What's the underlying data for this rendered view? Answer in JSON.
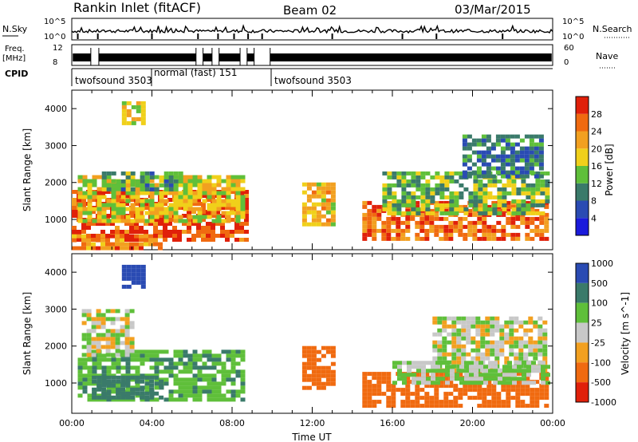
{
  "header": {
    "title": "Rankin Inlet (fitACF)",
    "beam": "Beam 02",
    "date": "03/Mar/2015"
  },
  "colors": {
    "axis": "#000000",
    "power_scale": [
      "#1a1adb",
      "#2a4bb3",
      "#3a7a6a",
      "#5fbf3a",
      "#f0d01a",
      "#f2a020",
      "#f06a10",
      "#e0200a"
    ],
    "velocity_scale": [
      "#2a4bb3",
      "#3a7a6a",
      "#5fbf3a",
      "#c8c8c8",
      "#f2a020",
      "#f06a10",
      "#e0200a"
    ]
  },
  "strip_panels": {
    "nsky": {
      "left_label": "N.Sky",
      "left_ticks": [
        "10^5",
        "10^0"
      ],
      "right_ticks": [
        "10^5",
        "10^0"
      ],
      "right_label": "N.Search"
    },
    "freq": {
      "left_label_line1": "Freq.",
      "left_label_line2": "[MHz]",
      "left_ticks": [
        "12",
        "8"
      ],
      "right_ticks": [
        "60",
        "0"
      ],
      "right_label": "Nave"
    },
    "cpid": {
      "label": "CPID",
      "segments": [
        {
          "label": "twofsound 3503",
          "start_h": 0.0,
          "end_h": 4.0
        },
        {
          "label": "normal (fast) 151",
          "start_h": 4.0,
          "end_h": 10.0
        },
        {
          "label": "twofsound 3503",
          "start_h": 10.0,
          "end_h": 24.0
        }
      ]
    }
  },
  "chart_data": [
    {
      "type": "heatmap",
      "title": "",
      "xlabel": "",
      "ylabel": "Slant Range [km]",
      "xlim": [
        0,
        24
      ],
      "ylim": [
        180,
        4500
      ],
      "yticks": [
        1000,
        2000,
        3000,
        4000
      ],
      "colorbar": {
        "label": "Power [dB]",
        "levels": [
          0,
          4,
          8,
          12,
          16,
          20,
          24,
          28,
          32
        ],
        "tick_labels": [
          "4",
          "8",
          "12",
          "16",
          "20",
          "24",
          "28"
        ]
      },
      "regions": [
        {
          "t0": 0.0,
          "t1": 8.6,
          "r0": 500,
          "r1": 1800,
          "level": 28
        },
        {
          "t0": 0.0,
          "t1": 4.5,
          "r0": 250,
          "r1": 600,
          "level": 24
        },
        {
          "t0": 0.3,
          "t1": 8.5,
          "r0": 1000,
          "r1": 2200,
          "level": 18
        },
        {
          "t0": 1.5,
          "t1": 5.5,
          "r0": 1800,
          "r1": 2300,
          "level": 12
        },
        {
          "t0": 2.5,
          "t1": 3.5,
          "r0": 3600,
          "r1": 4200,
          "level": 20
        },
        {
          "t0": 11.5,
          "t1": 13.0,
          "r0": 900,
          "r1": 2000,
          "level": 20
        },
        {
          "t0": 14.5,
          "t1": 23.8,
          "r0": 500,
          "r1": 1500,
          "level": 26
        },
        {
          "t0": 15.5,
          "t1": 23.8,
          "r0": 1200,
          "r1": 2300,
          "level": 14
        },
        {
          "t0": 19.5,
          "t1": 23.5,
          "r0": 2200,
          "r1": 3300,
          "level": 10
        }
      ]
    },
    {
      "type": "heatmap",
      "title": "",
      "xlabel": "Time UT",
      "ylabel": "Slant Range [km]",
      "xlim": [
        0,
        24
      ],
      "ylim": [
        180,
        4500
      ],
      "xticks": [
        "00:00",
        "04:00",
        "08:00",
        "12:00",
        "16:00",
        "20:00",
        "00:00"
      ],
      "yticks": [
        1000,
        2000,
        3000,
        4000
      ],
      "colorbar": {
        "label": "Velocity [m s^-1]",
        "tick_labels": [
          "1000",
          "500",
          "100",
          "25",
          "-25",
          "-100",
          "-500",
          "-1000"
        ]
      },
      "regions": [
        {
          "t0": 0.3,
          "t1": 8.6,
          "r0": 500,
          "r1": 1900,
          "velocity": 150
        },
        {
          "t0": 1.0,
          "t1": 4.5,
          "r0": 600,
          "r1": 1200,
          "velocity": 600
        },
        {
          "t0": 2.5,
          "t1": 3.5,
          "r0": 3600,
          "r1": 4200,
          "velocity": 800
        },
        {
          "t0": 0.5,
          "t1": 3.0,
          "r0": 1800,
          "r1": 3000,
          "velocity": 0
        },
        {
          "t0": 11.5,
          "t1": 13.0,
          "r0": 900,
          "r1": 2000,
          "velocity": -300
        },
        {
          "t0": 14.5,
          "t1": 23.8,
          "r0": 400,
          "r1": 1300,
          "velocity": -300
        },
        {
          "t0": 18.0,
          "t1": 23.5,
          "r0": 1300,
          "r1": 2800,
          "velocity": 0
        },
        {
          "t0": 16.0,
          "t1": 23.8,
          "r0": 1000,
          "r1": 1600,
          "velocity": 60
        }
      ]
    }
  ]
}
